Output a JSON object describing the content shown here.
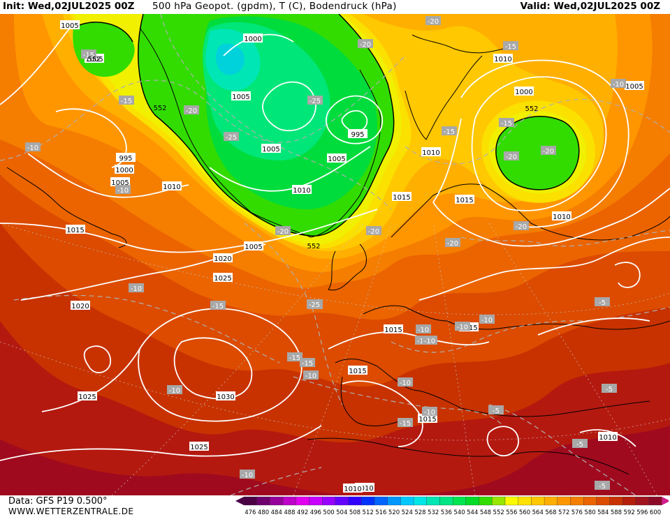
{
  "header": {
    "init_label": "Init: Wed,02JUL2025 00Z",
    "title": "500 hPa Geopot. (gpdm), T (C), Bodendruck (hPa)",
    "valid_label": "Valid: Wed,02JUL2025 00Z"
  },
  "footer": {
    "data_label": "Data: GFS P19 0.500°",
    "site": "WWW.WETTERZENTRALE.DE"
  },
  "legend": {
    "values": [
      "476",
      "480",
      "484",
      "488",
      "492",
      "496",
      "500",
      "504",
      "508",
      "512",
      "516",
      "520",
      "524",
      "528",
      "532",
      "536",
      "540",
      "544",
      "548",
      "552",
      "556",
      "560",
      "564",
      "568",
      "572",
      "576",
      "580",
      "584",
      "588",
      "592",
      "596",
      "600"
    ],
    "colors": [
      "#4b0046",
      "#6e006e",
      "#96009b",
      "#be00c8",
      "#e100f0",
      "#c800ff",
      "#9600ff",
      "#6400ff",
      "#3200ff",
      "#0032ff",
      "#0064ff",
      "#0096ff",
      "#00c8ff",
      "#00e6e6",
      "#00e6b4",
      "#00e682",
      "#00e650",
      "#00dc28",
      "#32dc00",
      "#96e600",
      "#fafa00",
      "#ffe100",
      "#ffc800",
      "#ffaf00",
      "#ff9600",
      "#f57d00",
      "#eb6400",
      "#dc4b00",
      "#c83200",
      "#b41e0a",
      "#a0141e",
      "#8c0a28",
      "#d21e8c"
    ]
  },
  "map_colors": {
    "c_600": "#a00a1e",
    "c_588": "#b4190f",
    "c_584": "#c83200",
    "c_580": "#dc4b00",
    "c_576": "#eb6400",
    "c_572": "#f57d00",
    "c_568": "#ff9600",
    "c_564": "#ffaf00",
    "c_560": "#ffc800",
    "c_556": "#fae100",
    "c_552": "#f0f000",
    "c_548": "#32dc00",
    "c_544": "#00dc3c",
    "c_540": "#00e678",
    "c_536": "#00e6b4",
    "c_532": "#00d2dc"
  },
  "pressure_labels": [
    "1005",
    "1005",
    "1000",
    "1010",
    "1005",
    "995",
    "1000",
    "1005",
    "1015",
    "1015",
    "1010",
    "1005",
    "1010",
    "1005",
    "1005",
    "1000",
    "995",
    "1010",
    "1020",
    "1025",
    "1020",
    "1030",
    "1025",
    "1025",
    "1015",
    "1015",
    "1015",
    "1015",
    "1010",
    "1010",
    "1010",
    "1010",
    "1015",
    "1005"
  ],
  "temperature_labels": [
    "-20",
    "-15",
    "-10",
    "-10",
    "-20",
    "-25",
    "-25",
    "-20",
    "-20",
    "-20",
    "-15",
    "-15",
    "-20",
    "-20",
    "-15",
    "-15",
    "-10",
    "-20",
    "-20",
    "-10",
    "-15",
    "-15",
    "-25",
    "-10",
    "-10",
    "-15",
    "-10",
    "-10",
    "-10",
    "-10",
    "-5",
    "-5",
    "-5",
    "-5",
    "-10",
    "-5",
    "-15",
    "-10",
    "-10",
    "-15",
    "-10"
  ],
  "height_labels": [
    "552",
    "552",
    "552",
    "552"
  ]
}
